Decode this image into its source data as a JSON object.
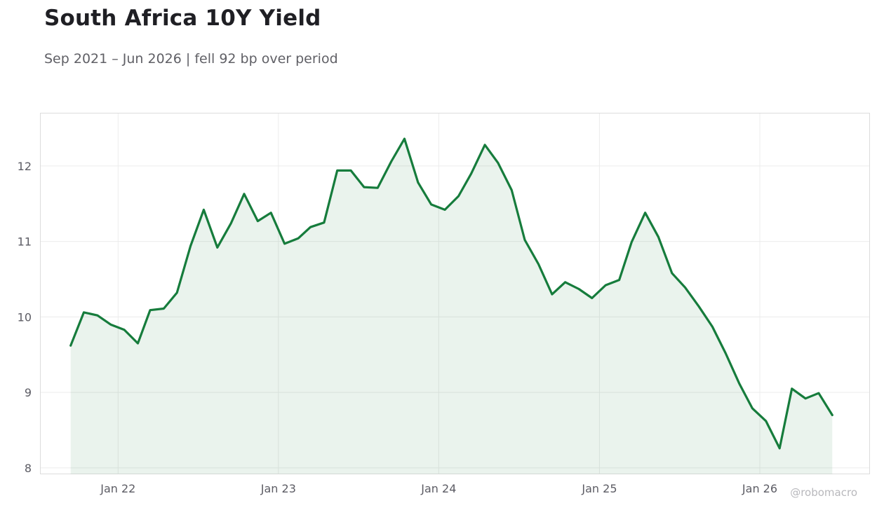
{
  "header": {
    "title": "South Africa 10Y Yield",
    "subtitle": "Sep 2021 – Jun 2026 | fell 92 bp over period"
  },
  "watermark": "@robomacro",
  "colors": {
    "line": "#167c3c",
    "fill": "#167c3c",
    "grid": "#ececec",
    "frame": "#dcdcdc"
  },
  "chart_data": {
    "type": "area",
    "title": "South Africa 10Y Yield",
    "subtitle": "Sep 2021 – Jun 2026 | fell 92 bp over period",
    "xlabel": "",
    "ylabel": "",
    "x_ticks": [
      {
        "label": "Jan 22",
        "date": "2022-01-01"
      },
      {
        "label": "Jan 23",
        "date": "2023-01-01"
      },
      {
        "label": "Jan 24",
        "date": "2024-01-01"
      },
      {
        "label": "Jan 25",
        "date": "2025-01-01"
      },
      {
        "label": "Jan 26",
        "date": "2026-01-01"
      }
    ],
    "y_ticks": [
      8,
      9,
      10,
      11,
      12
    ],
    "xlim": [
      "2021-07-08",
      "2026-09-08"
    ],
    "ylim": [
      7.92,
      12.7
    ],
    "grid": true,
    "series": [
      {
        "x": [
          "2021-09",
          "2021-10",
          "2021-11",
          "2021-12",
          "2022-01",
          "2022-02",
          "2022-03",
          "2022-04",
          "2022-05",
          "2022-06",
          "2022-07",
          "2022-08",
          "2022-09",
          "2022-10",
          "2022-11",
          "2022-12",
          "2023-01",
          "2023-02",
          "2023-03",
          "2023-04",
          "2023-05",
          "2023-06",
          "2023-07",
          "2023-08",
          "2023-09",
          "2023-10",
          "2023-11",
          "2023-12",
          "2024-01",
          "2024-02",
          "2024-03",
          "2024-04",
          "2024-05",
          "2024-06",
          "2024-07",
          "2024-08",
          "2024-09",
          "2024-10",
          "2024-11",
          "2024-12",
          "2025-01",
          "2025-02",
          "2025-03",
          "2025-04",
          "2025-05",
          "2025-06",
          "2025-07",
          "2025-08",
          "2025-09",
          "2025-10",
          "2025-11",
          "2025-12",
          "2026-01",
          "2026-02",
          "2026-03",
          "2026-04",
          "2026-05",
          "2026-06"
        ],
        "values": [
          9.62,
          10.06,
          10.02,
          9.9,
          9.83,
          9.65,
          10.09,
          10.11,
          10.32,
          10.94,
          11.42,
          10.92,
          11.24,
          11.63,
          11.27,
          11.38,
          10.97,
          11.04,
          11.19,
          11.25,
          11.94,
          11.94,
          11.72,
          11.71,
          12.06,
          12.36,
          11.78,
          11.49,
          11.42,
          11.6,
          11.9,
          12.28,
          12.04,
          11.68,
          11.02,
          10.7,
          10.3,
          10.46,
          10.37,
          10.25,
          10.42,
          10.49,
          10.99,
          11.38,
          11.06,
          10.58,
          10.39,
          10.14,
          9.87,
          9.52,
          9.12,
          8.79,
          8.62,
          8.26,
          9.05,
          8.92,
          8.99,
          8.7
        ]
      }
    ]
  }
}
